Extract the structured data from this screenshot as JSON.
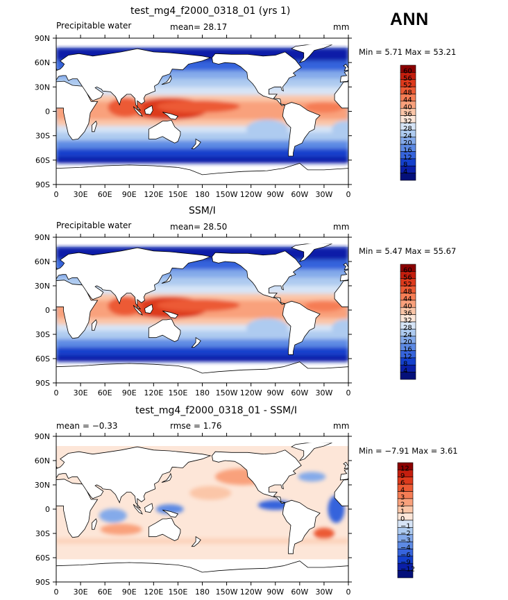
{
  "season": "ANN",
  "panels": [
    {
      "title": "test_mg4_f2000_0318_01 (yrs 1)",
      "left_label": "Precipitable water",
      "center_label": "mean=   28.17",
      "units": "mm",
      "minmax": "Min =    5.71  Max =   53.21"
    },
    {
      "title": "SSM/I",
      "left_label": "Precipitable water",
      "center_label": "mean=   28.50",
      "units": "mm",
      "minmax": "Min =    5.47  Max =   55.67"
    },
    {
      "title": "test_mg4_f2000_0318_01 - SSM/I",
      "left_label": "mean =   −0.33",
      "center_label": "rmse =    1.76",
      "units": "mm",
      "minmax": "Min =  −7.91  Max =    3.61"
    }
  ],
  "chart_data": [
    {
      "type": "heatmap",
      "title": "test_mg4_f2000_0318_01 (yrs 1)",
      "variable": "Precipitable water",
      "units": "mm",
      "mean": 28.17,
      "min": 5.71,
      "max": 53.21,
      "x_ticks": [
        "0",
        "30E",
        "60E",
        "90E",
        "120E",
        "150E",
        "180",
        "150W",
        "120W",
        "90W",
        "60W",
        "30W",
        "0"
      ],
      "y_ticks": [
        "90N",
        "60N",
        "30N",
        "0",
        "30S",
        "60S",
        "90S"
      ],
      "colorbar_levels": [
        "60",
        "56",
        "52",
        "48",
        "44",
        "40",
        "36",
        "32",
        "28",
        "24",
        "20",
        "16",
        "12",
        "8",
        "4"
      ],
      "colorbar_colors": [
        "#8b0000",
        "#c41e0e",
        "#dd3a1c",
        "#ec5a34",
        "#f57d55",
        "#f9a17c",
        "#fbc6a8",
        "#fde6d8",
        "#d6e4f6",
        "#aecbf0",
        "#84aaea",
        "#5d8ae4",
        "#3664dc",
        "#1440cc",
        "#0a1fa8",
        "#04107a"
      ]
    },
    {
      "type": "heatmap",
      "title": "SSM/I",
      "variable": "Precipitable water",
      "units": "mm",
      "mean": 28.5,
      "min": 5.47,
      "max": 55.67,
      "x_ticks": [
        "0",
        "30E",
        "60E",
        "90E",
        "120E",
        "150E",
        "180",
        "150W",
        "120W",
        "90W",
        "60W",
        "30W",
        "0"
      ],
      "y_ticks": [
        "90N",
        "60N",
        "30N",
        "0",
        "30S",
        "60S",
        "90S"
      ],
      "colorbar_levels": [
        "60",
        "56",
        "52",
        "48",
        "44",
        "40",
        "36",
        "32",
        "28",
        "24",
        "20",
        "16",
        "12",
        "8",
        "4"
      ],
      "colorbar_colors": [
        "#8b0000",
        "#c41e0e",
        "#dd3a1c",
        "#ec5a34",
        "#f57d55",
        "#f9a17c",
        "#fbc6a8",
        "#fde6d8",
        "#d6e4f6",
        "#aecbf0",
        "#84aaea",
        "#5d8ae4",
        "#3664dc",
        "#1440cc",
        "#0a1fa8",
        "#04107a"
      ]
    },
    {
      "type": "heatmap",
      "title": "test_mg4_f2000_0318_01 - SSM/I",
      "units": "mm",
      "mean": -0.33,
      "rmse": 1.76,
      "min": -7.91,
      "max": 3.61,
      "x_ticks": [
        "0",
        "30E",
        "60E",
        "90E",
        "120E",
        "150E",
        "180",
        "150W",
        "120W",
        "90W",
        "60W",
        "30W",
        "0"
      ],
      "y_ticks": [
        "90N",
        "60N",
        "30N",
        "0",
        "30S",
        "60S",
        "90S"
      ],
      "colorbar_levels": [
        "12",
        "9",
        "6",
        "4",
        "3",
        "2",
        "1",
        "0",
        "−1",
        "−2",
        "−3",
        "−4",
        "−6",
        "−9",
        "−12"
      ],
      "colorbar_colors": [
        "#8b0000",
        "#c41e0e",
        "#dd3a1c",
        "#ec5a34",
        "#f57d55",
        "#f9a17c",
        "#fbc6a8",
        "#fde6d8",
        "#d6e4f6",
        "#aecbf0",
        "#84aaea",
        "#5d8ae4",
        "#3664dc",
        "#1440cc",
        "#0a1fa8",
        "#04107a"
      ]
    }
  ]
}
